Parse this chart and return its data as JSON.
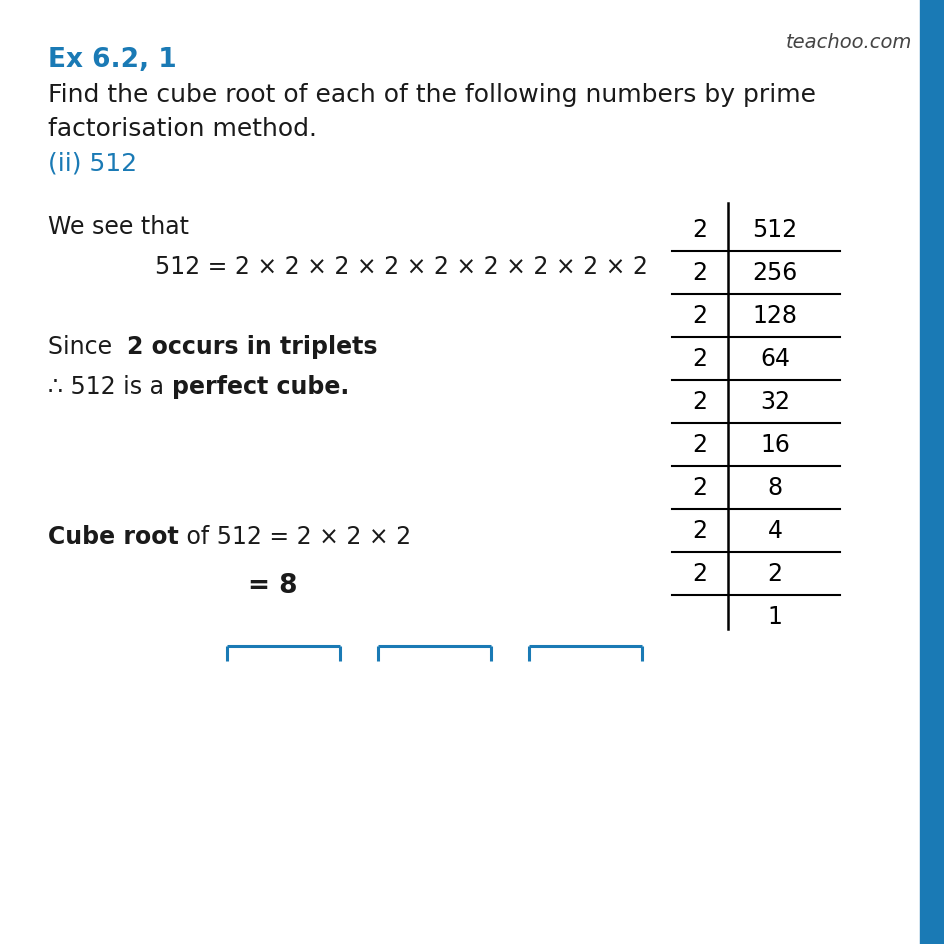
{
  "bg_color": "#ffffff",
  "title_text": "Ex 6.2, 1",
  "title_color": "#1a7ab5",
  "title_fontsize": 19,
  "question_line1": "Find the cube root of each of the following numbers by prime",
  "question_line2": "factorisation method.",
  "question_color": "#1a1a1a",
  "question_fontsize": 18,
  "subpart_text": "(ii) 512",
  "subpart_color": "#1a7ab5",
  "subpart_fontsize": 18,
  "we_see_text": "We see that",
  "we_see_fontsize": 17,
  "equation_text": "512 = 2 × 2 × 2 × 2 × 2 × 2 × 2 × 2 × 2",
  "equation_fontsize": 17,
  "bracket_color": "#1a7ab5",
  "since_normal": "Since  ",
  "since_bold": "2 occurs in triplets",
  "since_fontsize": 17,
  "therefore_normal": "∴ 512 is a ",
  "therefore_bold": "perfect cube.",
  "therefore_fontsize": 17,
  "cube_root_bold": "Cube root",
  "cube_root_normal": " of 512 = 2 × 2 × 2",
  "cube_root_fontsize": 17,
  "result_text": "= 8",
  "result_fontsize": 19,
  "table_divisors": [
    "2",
    "2",
    "2",
    "2",
    "2",
    "2",
    "2",
    "2",
    "2"
  ],
  "table_dividends": [
    "512",
    "256",
    "128",
    "64",
    "32",
    "16",
    "8",
    "4",
    "2"
  ],
  "table_remainder": "1",
  "table_fontsize": 17,
  "teachoo_text": "teachoo.com",
  "teachoo_color": "#444444",
  "teachoo_fontsize": 14,
  "right_bar_color": "#1a7ab5"
}
